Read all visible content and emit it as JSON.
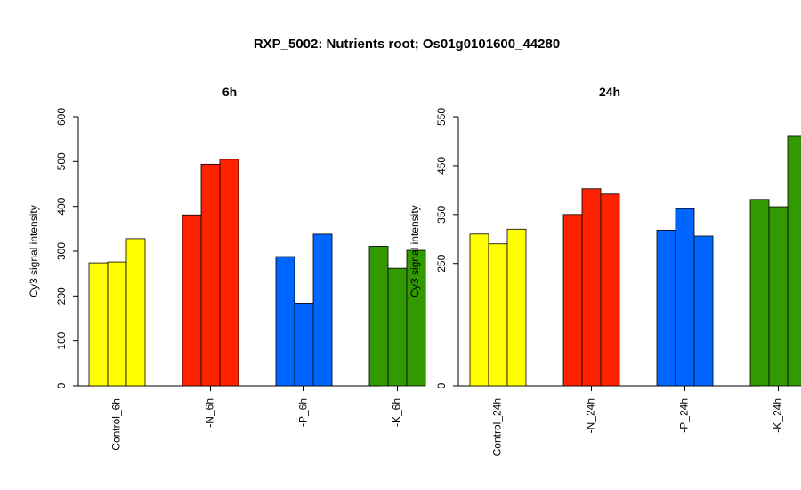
{
  "title": "RXP_5002: Nutrients root; Os01g0101600_44280",
  "chart_data": [
    {
      "type": "bar",
      "title": "6h",
      "ylabel": "Cy3 signal intensity",
      "ylim": [
        0,
        600
      ],
      "yticks": [
        0,
        100,
        200,
        300,
        400,
        500,
        600
      ],
      "groups": [
        {
          "label": "Control_6h",
          "color": "#ffff00",
          "values": [
            274,
            276,
            328
          ]
        },
        {
          "label": "-N_6h",
          "color": "#ff2200",
          "values": [
            381,
            494,
            505
          ]
        },
        {
          "label": "-P_6h",
          "color": "#0066ff",
          "values": [
            288,
            184,
            338
          ]
        },
        {
          "label": "-K_6h",
          "color": "#339900",
          "values": [
            311,
            262,
            302
          ]
        }
      ]
    },
    {
      "type": "bar",
      "title": "24h",
      "ylabel": "Cy3 signal intensity",
      "ylim": [
        0,
        550
      ],
      "yticks": [
        0,
        250,
        350,
        450,
        550
      ],
      "ytick_positions": [
        0,
        250,
        350,
        450,
        550
      ],
      "groups": [
        {
          "label": "Control_24h",
          "color": "#ffff00",
          "values": [
            310,
            290,
            320
          ]
        },
        {
          "label": "-N_24h",
          "color": "#ff2200",
          "values": [
            350,
            403,
            392
          ]
        },
        {
          "label": "-P_24h",
          "color": "#0066ff",
          "values": [
            318,
            362,
            306
          ]
        },
        {
          "label": "-K_24h",
          "color": "#339900",
          "values": [
            381,
            366,
            510
          ]
        }
      ]
    }
  ]
}
